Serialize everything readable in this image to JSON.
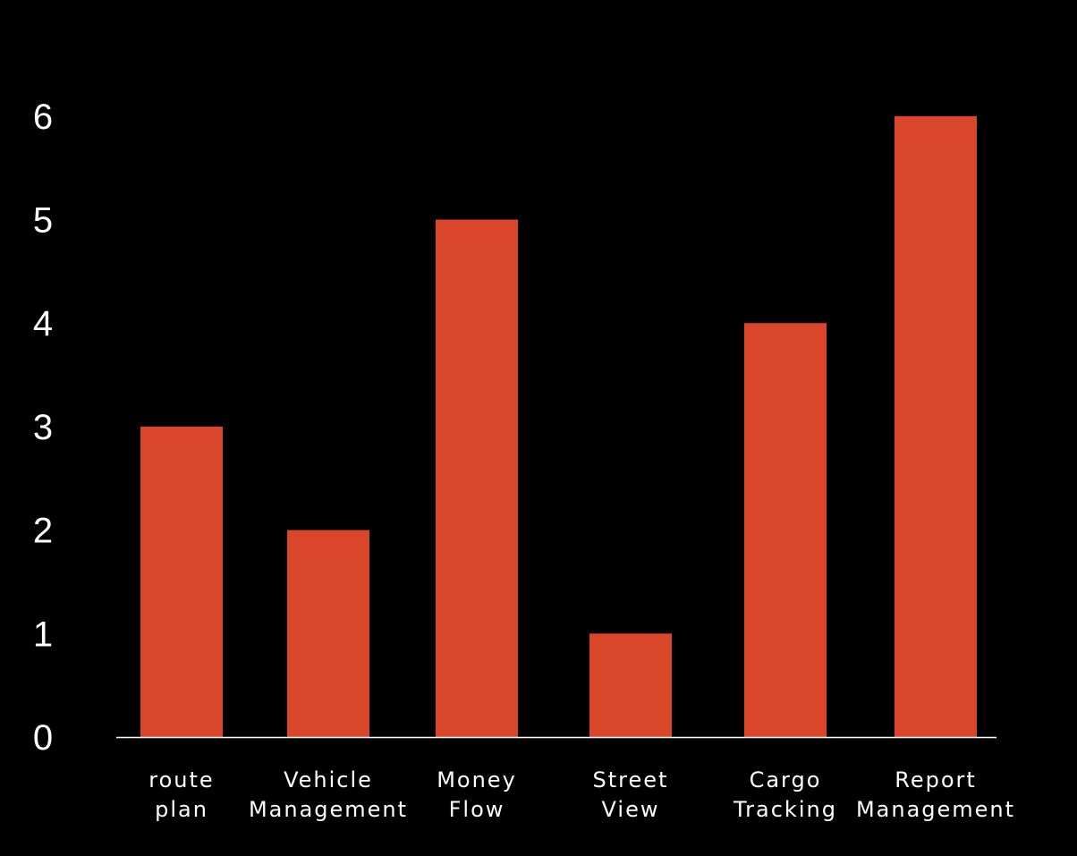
{
  "chart_data": {
    "type": "bar",
    "title": "",
    "xlabel": "",
    "ylabel": "",
    "categories": [
      [
        "route",
        "plan"
      ],
      [
        "Vehicle",
        "Management"
      ],
      [
        "Money",
        "Flow"
      ],
      [
        "Street",
        "View"
      ],
      [
        "Cargo",
        "Tracking"
      ],
      [
        "Report",
        "Management"
      ]
    ],
    "values": [
      3,
      2,
      5,
      1,
      4,
      6
    ],
    "ylim": [
      0,
      6
    ],
    "yticks": [
      "0",
      "1",
      "2",
      "3",
      "4",
      "5",
      "6"
    ],
    "grid": false,
    "legend": "none",
    "colors": {
      "background": "#000000",
      "bar": "#D9462A",
      "axis": "#FFFFFF",
      "text": "#FFFFFF"
    }
  }
}
